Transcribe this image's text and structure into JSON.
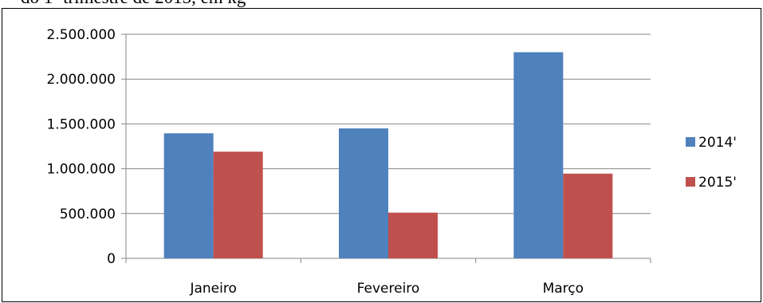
{
  "caption": "do 1º trimestre de 2015, em kg",
  "chart_data": {
    "type": "bar",
    "categories": [
      "Janeiro",
      "Fevereiro",
      "Março"
    ],
    "series": [
      {
        "name": "2014'",
        "values": [
          1395000,
          1450000,
          2300000
        ],
        "color": "#4f81bd"
      },
      {
        "name": "2015'",
        "values": [
          1190000,
          510000,
          945000
        ],
        "color": "#c0504d"
      }
    ],
    "ylim": [
      0,
      2500000
    ],
    "yticks": [
      0,
      500000,
      1000000,
      1500000,
      2000000,
      2500000
    ],
    "ytick_labels": [
      "0",
      "500.000",
      "1.000.000",
      "1.500.000",
      "2.000.000",
      "2.500.000"
    ],
    "grid": true,
    "legend": "right",
    "title": "",
    "xlabel": "",
    "ylabel": ""
  }
}
